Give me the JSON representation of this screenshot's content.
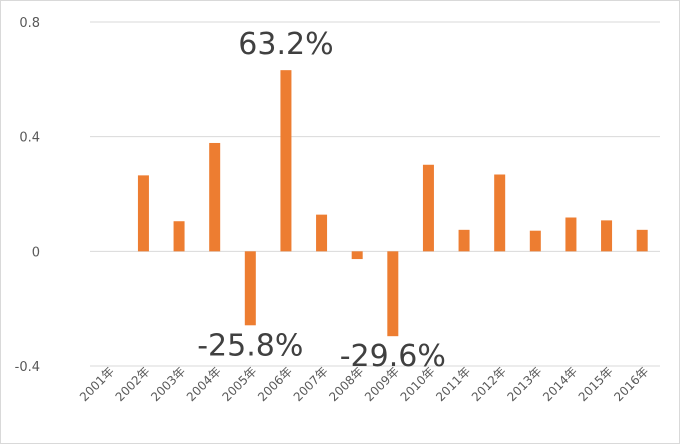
{
  "chart_data": {
    "type": "bar",
    "categories": [
      "2001年",
      "2002年",
      "2003年",
      "2004年",
      "2005年",
      "2006年",
      "2007年",
      "2008年",
      "2009年",
      "2010年",
      "2011年",
      "2012年",
      "2013年",
      "2014年",
      "2015年",
      "2016年"
    ],
    "values": [
      0,
      0.265,
      0.105,
      0.378,
      -0.258,
      0.632,
      0.128,
      -0.027,
      -0.296,
      0.302,
      0.075,
      0.268,
      0.072,
      0.118,
      0.108,
      0.075
    ],
    "title": "",
    "xlabel": "",
    "ylabel": "",
    "ylim": [
      -0.4,
      0.8
    ],
    "yticks": [
      "-0.4",
      "0",
      "0.4",
      "0.8"
    ],
    "grid": true,
    "legend": "none",
    "bar_color": "#ED7D31",
    "annotations": [
      {
        "category": "2006年",
        "text": "63.2%"
      },
      {
        "category": "2005年",
        "text": "-25.8%"
      },
      {
        "category": "2009年",
        "text": "-29.6%"
      }
    ]
  }
}
